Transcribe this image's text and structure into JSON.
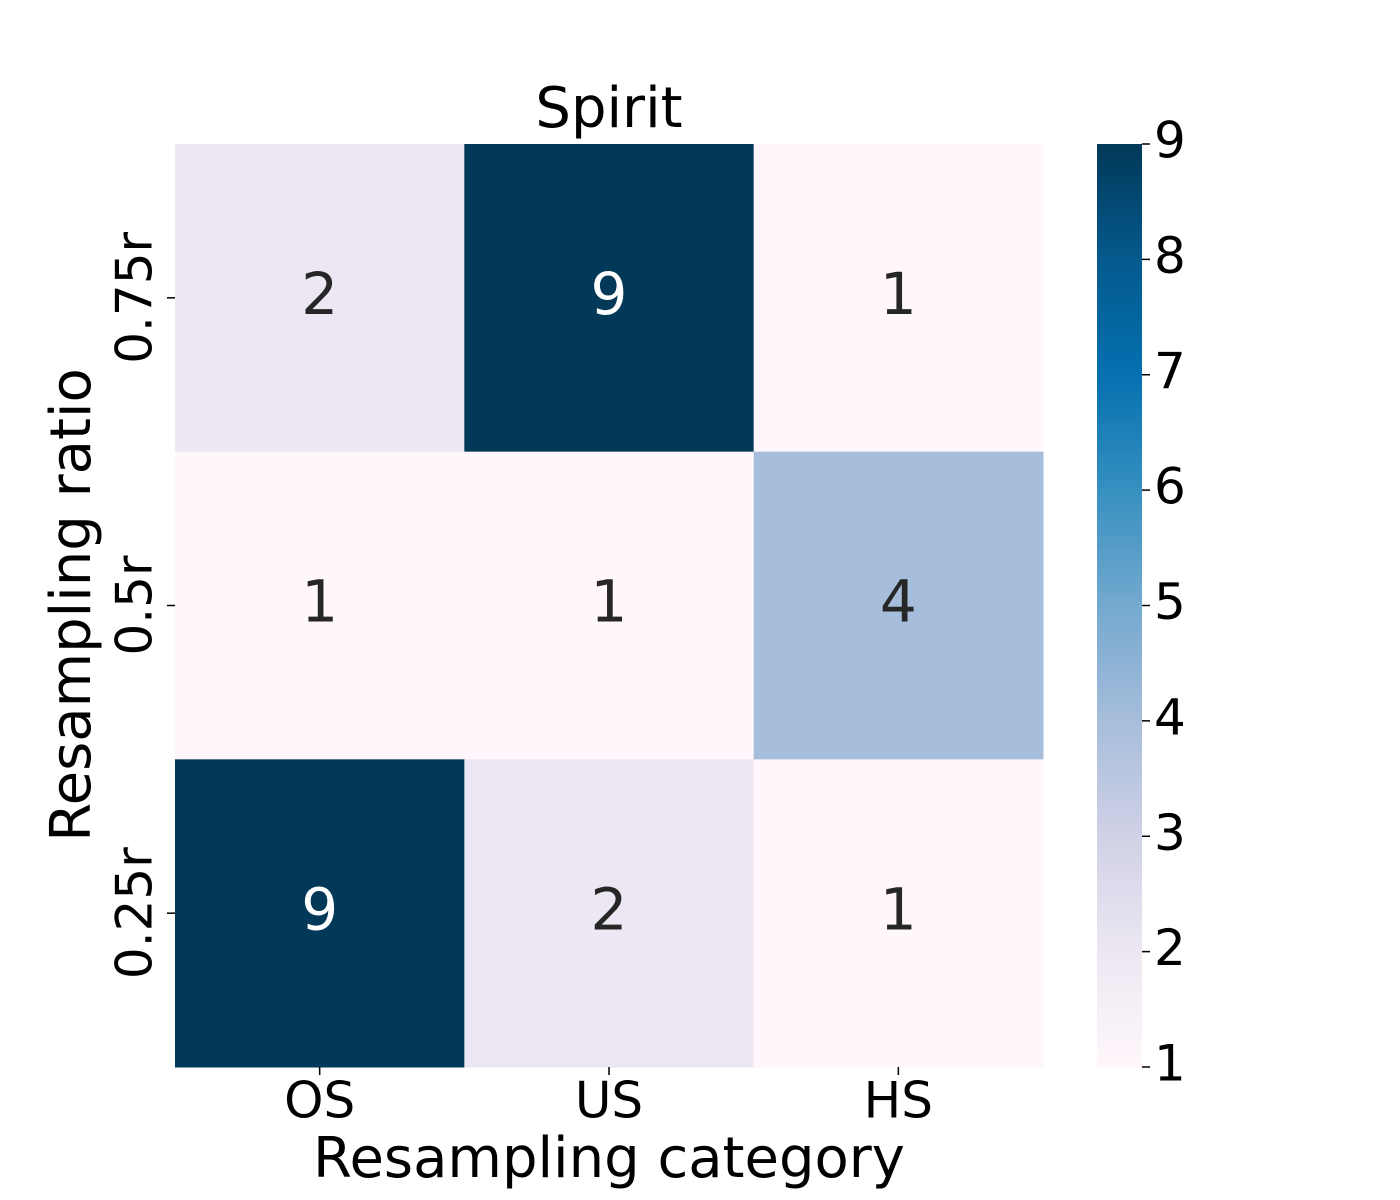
{
  "chart_data": {
    "type": "heatmap",
    "title": "Spirit",
    "xlabel": "Resampling category",
    "ylabel": "Resampling ratio",
    "x_categories": [
      "OS",
      "US",
      "HS"
    ],
    "y_categories": [
      "0.75r",
      "0.5r",
      "0.25r"
    ],
    "values": [
      [
        2,
        9,
        1
      ],
      [
        1,
        1,
        4
      ],
      [
        9,
        2,
        1
      ]
    ],
    "colormap": [
      "#fff7fb",
      "#ece7f2",
      "#d0d1e6",
      "#a6bddb",
      "#74a9cf",
      "#3690c0",
      "#0570b0",
      "#045a8d",
      "#023858"
    ],
    "clim": [
      1,
      9
    ],
    "cticks": [
      1,
      2,
      3,
      4,
      5,
      6,
      7,
      8,
      9
    ]
  }
}
